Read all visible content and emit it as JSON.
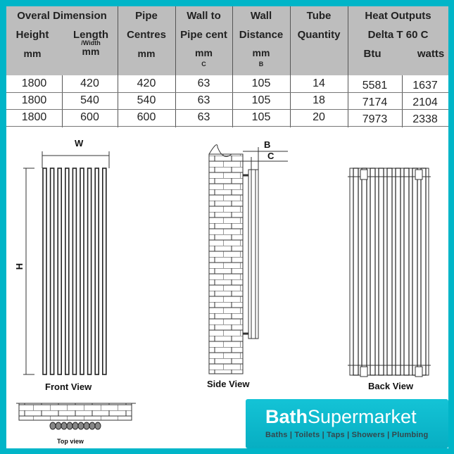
{
  "table": {
    "headers": {
      "overall": "Overal Dimension",
      "height": [
        "Height",
        "mm"
      ],
      "length": [
        "Length",
        "/Width",
        "mm"
      ],
      "pipe_centres": [
        "Pipe",
        "Centres",
        "mm"
      ],
      "wall_to_pipe": [
        "Wall to",
        "Pipe cent",
        "mm",
        "C"
      ],
      "wall_distance": [
        "Wall",
        "Distance",
        "mm",
        "B"
      ],
      "tube_quantity": [
        "Tube",
        "Quantity"
      ],
      "heat_outputs": [
        "Heat Outputs",
        "Delta T 60 C"
      ],
      "btu": "Btu",
      "watts": "watts"
    },
    "rows": [
      [
        "1800",
        "420",
        "420",
        "63",
        "105",
        "14",
        "5581",
        "1637"
      ],
      [
        "1800",
        "540",
        "540",
        "63",
        "105",
        "18",
        "7174",
        "2104"
      ],
      [
        "1800",
        "600",
        "600",
        "63",
        "105",
        "20",
        "7973",
        "2338"
      ]
    ]
  },
  "diagrams": {
    "front_view": "Front View",
    "side_view": "Side View",
    "back_view": "Back View",
    "top_view": "Top view",
    "w_label": "W",
    "h_label": "H",
    "b_label": "B",
    "c_label": "C"
  },
  "logo": {
    "brand_bold": "Bath",
    "brand_light": "Supermarket",
    "tagline": "Baths | Toilets | Taps | Showers | Plumbing"
  },
  "colors": {
    "frame": "#00b5c8",
    "header": "#bdbdbd"
  }
}
